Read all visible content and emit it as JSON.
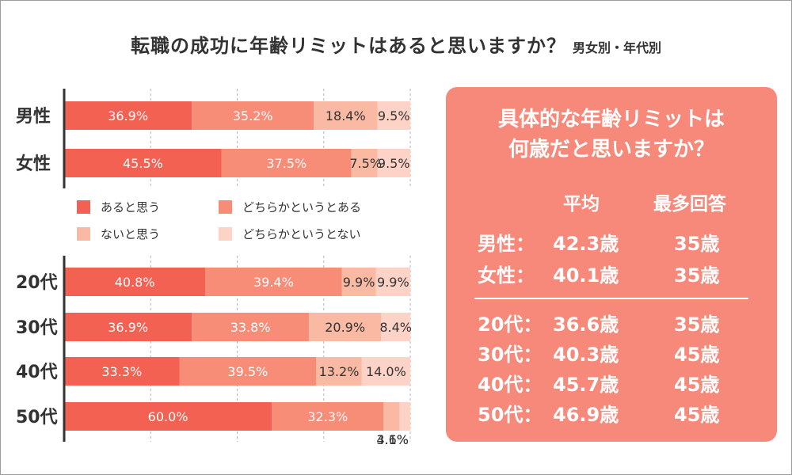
{
  "title": {
    "main": "転職の成功に年齢リミットはあると思いますか？",
    "sub": "男女別・年代別"
  },
  "colors": {
    "s1": "#f26151",
    "s2": "#f78c77",
    "s3": "#fab9a2",
    "s4": "#fcd3c6",
    "panel": "#f6897a"
  },
  "chart_data": [
    {
      "type": "bar",
      "orientation": "horizontal-stacked-100",
      "title": "男女別",
      "categories": [
        "男性",
        "女性"
      ],
      "series": [
        {
          "name": "あると思う",
          "values": [
            36.9,
            45.5
          ]
        },
        {
          "name": "どちらかというとある",
          "values": [
            35.2,
            37.5
          ]
        },
        {
          "name": "ないと思う",
          "values": [
            18.4,
            7.5
          ]
        },
        {
          "name": "どちらかというとない",
          "values": [
            9.5,
            9.5
          ]
        }
      ],
      "xlim": [
        0,
        100
      ]
    },
    {
      "type": "bar",
      "orientation": "horizontal-stacked-100",
      "title": "年代別",
      "categories": [
        "20代",
        "30代",
        "40代",
        "50代"
      ],
      "series": [
        {
          "name": "あると思う",
          "values": [
            40.8,
            36.9,
            33.3,
            60.0
          ]
        },
        {
          "name": "どちらかというとある",
          "values": [
            39.4,
            33.8,
            39.5,
            32.3
          ]
        },
        {
          "name": "ないと思う",
          "values": [
            9.9,
            20.9,
            13.2,
            4.6
          ]
        },
        {
          "name": "どちらかというとない",
          "values": [
            9.9,
            8.4,
            14.0,
            3.1
          ]
        }
      ],
      "xlim": [
        0,
        100
      ]
    }
  ],
  "legend": [
    "あると思う",
    "どちらかというとある",
    "ないと思う",
    "どちらかというとない"
  ],
  "panel": {
    "heading_line1": "具体的な年齢リミットは",
    "heading_line2": "何歳だと思いますか？",
    "col_avg": "平均",
    "col_mode": "最多回答",
    "gender_rows": [
      {
        "label": "男性",
        "avg": "42.3歳",
        "mode": "35歳"
      },
      {
        "label": "女性",
        "avg": "40.1歳",
        "mode": "35歳"
      }
    ],
    "age_rows": [
      {
        "label": "20代",
        "avg": "36.6歳",
        "mode": "35歳"
      },
      {
        "label": "30代",
        "avg": "40.3歳",
        "mode": "45歳"
      },
      {
        "label": "40代",
        "avg": "45.7歳",
        "mode": "45歳"
      },
      {
        "label": "50代",
        "avg": "46.9歳",
        "mode": "45歳"
      }
    ]
  }
}
